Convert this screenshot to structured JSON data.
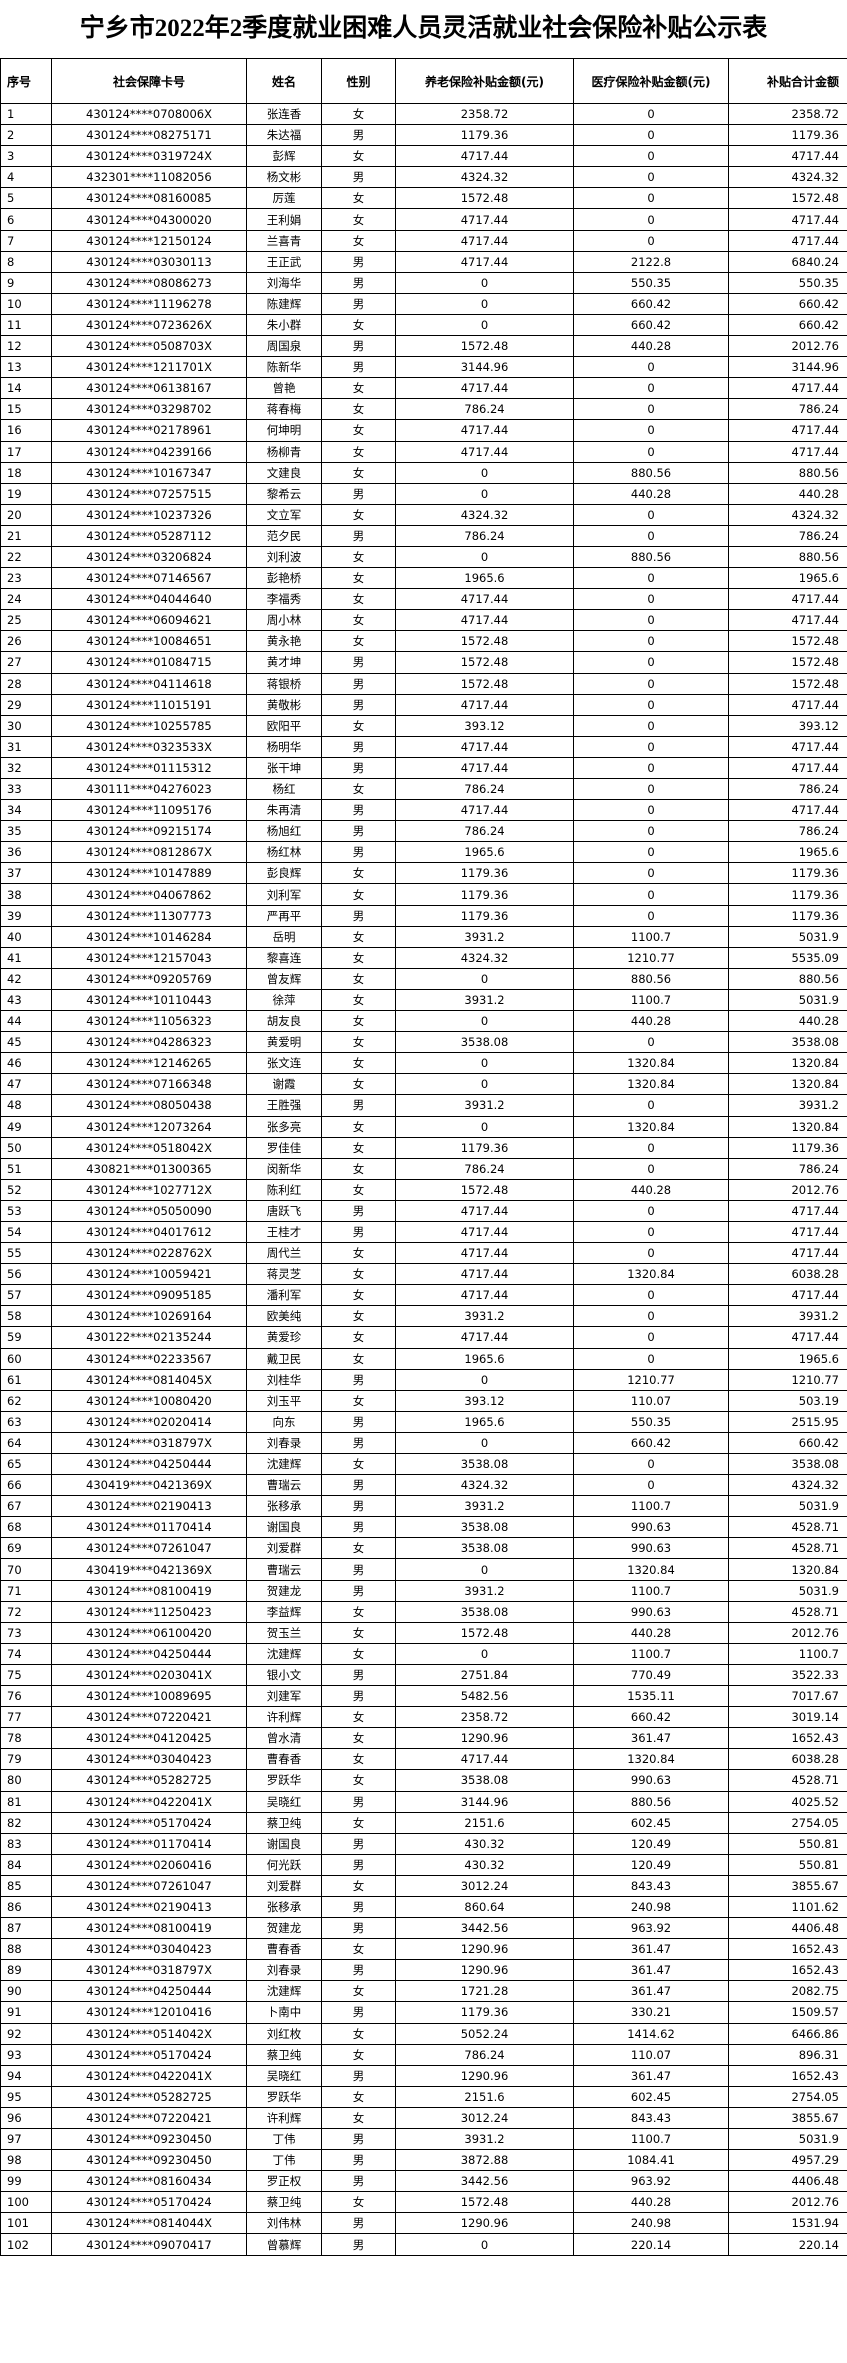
{
  "title": "宁乡市2022年2季度就业困难人员灵活就业社会保险补贴公示表",
  "table": {
    "header": [
      "序号",
      "社会保障卡号",
      "姓名",
      "性别",
      "养老保险补贴金额(元)",
      "医疗保险补贴金额(元)",
      "补贴合计金额"
    ],
    "rows": [
      [
        1,
        "430124****0708006X",
        "张连香",
        "女",
        2358.72,
        0,
        2358.72
      ],
      [
        2,
        "430124****08275171",
        "朱达福",
        "男",
        1179.36,
        0,
        1179.36
      ],
      [
        3,
        "430124****0319724X",
        "彭辉",
        "女",
        4717.44,
        0,
        4717.44
      ],
      [
        4,
        "432301****11082056",
        "杨文彬",
        "男",
        4324.32,
        0,
        4324.32
      ],
      [
        5,
        "430124****08160085",
        "厉莲",
        "女",
        1572.48,
        0,
        1572.48
      ],
      [
        6,
        "430124****04300020",
        "王利娟",
        "女",
        4717.44,
        0,
        4717.44
      ],
      [
        7,
        "430124****12150124",
        "兰喜青",
        "女",
        4717.44,
        0,
        4717.44
      ],
      [
        8,
        "430124****03030113",
        "王正武",
        "男",
        4717.44,
        2122.8,
        6840.24
      ],
      [
        9,
        "430124****08086273",
        "刘海华",
        "男",
        0,
        550.35,
        550.35
      ],
      [
        10,
        "430124****11196278",
        "陈建辉",
        "男",
        0,
        660.42,
        660.42
      ],
      [
        11,
        "430124****0723626X",
        "朱小群",
        "女",
        0,
        660.42,
        660.42
      ],
      [
        12,
        "430124****0508703X",
        "周国泉",
        "男",
        1572.48,
        440.28,
        2012.76
      ],
      [
        13,
        "430124****1211701X",
        "陈新华",
        "男",
        3144.96,
        0,
        3144.96
      ],
      [
        14,
        "430124****06138167",
        "曾艳",
        "女",
        4717.44,
        0,
        4717.44
      ],
      [
        15,
        "430124****03298702",
        "蒋春梅",
        "女",
        786.24,
        0,
        786.24
      ],
      [
        16,
        "430124****02178961",
        "何坤明",
        "女",
        4717.44,
        0,
        4717.44
      ],
      [
        17,
        "430124****04239166",
        "杨柳青",
        "女",
        4717.44,
        0,
        4717.44
      ],
      [
        18,
        "430124****10167347",
        "文建良",
        "女",
        0,
        880.56,
        880.56
      ],
      [
        19,
        "430124****07257515",
        "黎希云",
        "男",
        0,
        440.28,
        440.28
      ],
      [
        20,
        "430124****10237326",
        "文立军",
        "女",
        4324.32,
        0,
        4324.32
      ],
      [
        21,
        "430124****05287112",
        "范夕民",
        "男",
        786.24,
        0,
        786.24
      ],
      [
        22,
        "430124****03206824",
        "刘利波",
        "女",
        0,
        880.56,
        880.56
      ],
      [
        23,
        "430124****07146567",
        "彭艳桥",
        "女",
        1965.6,
        0,
        1965.6
      ],
      [
        24,
        "430124****04044640",
        "李福秀",
        "女",
        4717.44,
        0,
        4717.44
      ],
      [
        25,
        "430124****06094621",
        "周小林",
        "女",
        4717.44,
        0,
        4717.44
      ],
      [
        26,
        "430124****10084651",
        "黄永艳",
        "女",
        1572.48,
        0,
        1572.48
      ],
      [
        27,
        "430124****01084715",
        "黄才坤",
        "男",
        1572.48,
        0,
        1572.48
      ],
      [
        28,
        "430124****04114618",
        "蒋银桥",
        "男",
        1572.48,
        0,
        1572.48
      ],
      [
        29,
        "430124****11015191",
        "黄敬彬",
        "男",
        4717.44,
        0,
        4717.44
      ],
      [
        30,
        "430124****10255785",
        "欧阳平",
        "女",
        393.12,
        0,
        393.12
      ],
      [
        31,
        "430124****0323533X",
        "杨明华",
        "男",
        4717.44,
        0,
        4717.44
      ],
      [
        32,
        "430124****01115312",
        "张干坤",
        "男",
        4717.44,
        0,
        4717.44
      ],
      [
        33,
        "430111****04276023",
        "杨红",
        "女",
        786.24,
        0,
        786.24
      ],
      [
        34,
        "430124****11095176",
        "朱再清",
        "男",
        4717.44,
        0,
        4717.44
      ],
      [
        35,
        "430124****09215174",
        "杨旭红",
        "男",
        786.24,
        0,
        786.24
      ],
      [
        36,
        "430124****0812867X",
        "杨红林",
        "男",
        1965.6,
        0,
        1965.6
      ],
      [
        37,
        "430124****10147889",
        "彭良辉",
        "女",
        1179.36,
        0,
        1179.36
      ],
      [
        38,
        "430124****04067862",
        "刘利军",
        "女",
        1179.36,
        0,
        1179.36
      ],
      [
        39,
        "430124****11307773",
        "严再平",
        "男",
        1179.36,
        0,
        1179.36
      ],
      [
        40,
        "430124****10146284",
        "岳明",
        "女",
        3931.2,
        1100.7,
        5031.9
      ],
      [
        41,
        "430124****12157043",
        "黎喜连",
        "女",
        4324.32,
        1210.77,
        5535.09
      ],
      [
        42,
        "430124****09205769",
        "曾友辉",
        "女",
        0,
        880.56,
        880.56
      ],
      [
        43,
        "430124****10110443",
        "徐萍",
        "女",
        3931.2,
        1100.7,
        5031.9
      ],
      [
        44,
        "430124****11056323",
        "胡友良",
        "女",
        0,
        440.28,
        440.28
      ],
      [
        45,
        "430124****04286323",
        "黄爱明",
        "女",
        3538.08,
        0,
        3538.08
      ],
      [
        46,
        "430124****12146265",
        "张文连",
        "女",
        0,
        1320.84,
        1320.84
      ],
      [
        47,
        "430124****07166348",
        "谢霞",
        "女",
        0,
        1320.84,
        1320.84
      ],
      [
        48,
        "430124****08050438",
        "王胜强",
        "男",
        3931.2,
        0,
        3931.2
      ],
      [
        49,
        "430124****12073264",
        "张多亮",
        "女",
        0,
        1320.84,
        1320.84
      ],
      [
        50,
        "430124****0518042X",
        "罗佳佳",
        "女",
        1179.36,
        0,
        1179.36
      ],
      [
        51,
        "430821****01300365",
        "闵新华",
        "女",
        786.24,
        0,
        786.24
      ],
      [
        52,
        "430124****1027712X",
        "陈利红",
        "女",
        1572.48,
        440.28,
        2012.76
      ],
      [
        53,
        "430124****05050090",
        "唐跃飞",
        "男",
        4717.44,
        0,
        4717.44
      ],
      [
        54,
        "430124****04017612",
        "王桂才",
        "男",
        4717.44,
        0,
        4717.44
      ],
      [
        55,
        "430124****0228762X",
        "周代兰",
        "女",
        4717.44,
        0,
        4717.44
      ],
      [
        56,
        "430124****10059421",
        "蒋灵芝",
        "女",
        4717.44,
        1320.84,
        6038.28
      ],
      [
        57,
        "430124****09095185",
        "潘利军",
        "女",
        4717.44,
        0,
        4717.44
      ],
      [
        58,
        "430124****10269164",
        "欧美纯",
        "女",
        3931.2,
        0,
        3931.2
      ],
      [
        59,
        "430122****02135244",
        "黄爱珍",
        "女",
        4717.44,
        0,
        4717.44
      ],
      [
        60,
        "430124****02233567",
        "戴卫民",
        "女",
        1965.6,
        0,
        1965.6
      ],
      [
        61,
        "430124****0814045X",
        "刘桂华",
        "男",
        0,
        1210.77,
        1210.77
      ],
      [
        62,
        "430124****10080420",
        "刘玉平",
        "女",
        393.12,
        110.07,
        503.19
      ],
      [
        63,
        "430124****02020414",
        "向东",
        "男",
        1965.6,
        550.35,
        2515.95
      ],
      [
        64,
        "430124****0318797X",
        "刘春录",
        "男",
        0,
        660.42,
        660.42
      ],
      [
        65,
        "430124****04250444",
        "沈建辉",
        "女",
        3538.08,
        0,
        3538.08
      ],
      [
        66,
        "430419****0421369X",
        "曹瑞云",
        "男",
        4324.32,
        0,
        4324.32
      ],
      [
        67,
        "430124****02190413",
        "张移承",
        "男",
        3931.2,
        1100.7,
        5031.9
      ],
      [
        68,
        "430124****01170414",
        "谢国良",
        "男",
        3538.08,
        990.63,
        4528.71
      ],
      [
        69,
        "430124****07261047",
        "刘爱群",
        "女",
        3538.08,
        990.63,
        4528.71
      ],
      [
        70,
        "430419****0421369X",
        "曹瑞云",
        "男",
        0,
        1320.84,
        1320.84
      ],
      [
        71,
        "430124****08100419",
        "贺建龙",
        "男",
        3931.2,
        1100.7,
        5031.9
      ],
      [
        72,
        "430124****11250423",
        "李益辉",
        "女",
        3538.08,
        990.63,
        4528.71
      ],
      [
        73,
        "430124****06100420",
        "贺玉兰",
        "女",
        1572.48,
        440.28,
        2012.76
      ],
      [
        74,
        "430124****04250444",
        "沈建辉",
        "女",
        0,
        1100.7,
        1100.7
      ],
      [
        75,
        "430124****0203041X",
        "银小文",
        "男",
        2751.84,
        770.49,
        3522.33
      ],
      [
        76,
        "430124****10089695",
        "刘建军",
        "男",
        5482.56,
        1535.11,
        7017.67
      ],
      [
        77,
        "430124****07220421",
        "许利辉",
        "女",
        2358.72,
        660.42,
        3019.14
      ],
      [
        78,
        "430124****04120425",
        "曾水清",
        "女",
        1290.96,
        361.47,
        1652.43
      ],
      [
        79,
        "430124****03040423",
        "曹春香",
        "女",
        4717.44,
        1320.84,
        6038.28
      ],
      [
        80,
        "430124****05282725",
        "罗跃华",
        "女",
        3538.08,
        990.63,
        4528.71
      ],
      [
        81,
        "430124****0422041X",
        "吴晓红",
        "男",
        3144.96,
        880.56,
        4025.52
      ],
      [
        82,
        "430124****05170424",
        "蔡卫纯",
        "女",
        2151.6,
        602.45,
        2754.05
      ],
      [
        83,
        "430124****01170414",
        "谢国良",
        "男",
        430.32,
        120.49,
        550.81
      ],
      [
        84,
        "430124****02060416",
        "何光跃",
        "男",
        430.32,
        120.49,
        550.81
      ],
      [
        85,
        "430124****07261047",
        "刘爱群",
        "女",
        3012.24,
        843.43,
        3855.67
      ],
      [
        86,
        "430124****02190413",
        "张移承",
        "男",
        860.64,
        240.98,
        1101.62
      ],
      [
        87,
        "430124****08100419",
        "贺建龙",
        "男",
        3442.56,
        963.92,
        4406.48
      ],
      [
        88,
        "430124****03040423",
        "曹春香",
        "女",
        1290.96,
        361.47,
        1652.43
      ],
      [
        89,
        "430124****0318797X",
        "刘春录",
        "男",
        1290.96,
        361.47,
        1652.43
      ],
      [
        90,
        "430124****04250444",
        "沈建辉",
        "女",
        1721.28,
        361.47,
        2082.75
      ],
      [
        91,
        "430124****12010416",
        "卜南中",
        "男",
        1179.36,
        330.21,
        1509.57
      ],
      [
        92,
        "430124****0514042X",
        "刘红枚",
        "女",
        5052.24,
        1414.62,
        6466.86
      ],
      [
        93,
        "430124****05170424",
        "蔡卫纯",
        "女",
        786.24,
        110.07,
        896.31
      ],
      [
        94,
        "430124****0422041X",
        "吴晓红",
        "男",
        1290.96,
        361.47,
        1652.43
      ],
      [
        95,
        "430124****05282725",
        "罗跃华",
        "女",
        2151.6,
        602.45,
        2754.05
      ],
      [
        96,
        "430124****07220421",
        "许利辉",
        "女",
        3012.24,
        843.43,
        3855.67
      ],
      [
        97,
        "430124****09230450",
        "丁伟",
        "男",
        3931.2,
        1100.7,
        5031.9
      ],
      [
        98,
        "430124****09230450",
        "丁伟",
        "男",
        3872.88,
        1084.41,
        4957.29
      ],
      [
        99,
        "430124****08160434",
        "罗正权",
        "男",
        3442.56,
        963.92,
        4406.48
      ],
      [
        100,
        "430124****05170424",
        "蔡卫纯",
        "女",
        1572.48,
        440.28,
        2012.76
      ],
      [
        101,
        "430124****0814044X",
        "刘伟林",
        "男",
        1290.96,
        240.98,
        1531.94
      ],
      [
        102,
        "430124****09070417",
        "曾慕辉",
        "男",
        0,
        220.14,
        220.14
      ]
    ]
  }
}
